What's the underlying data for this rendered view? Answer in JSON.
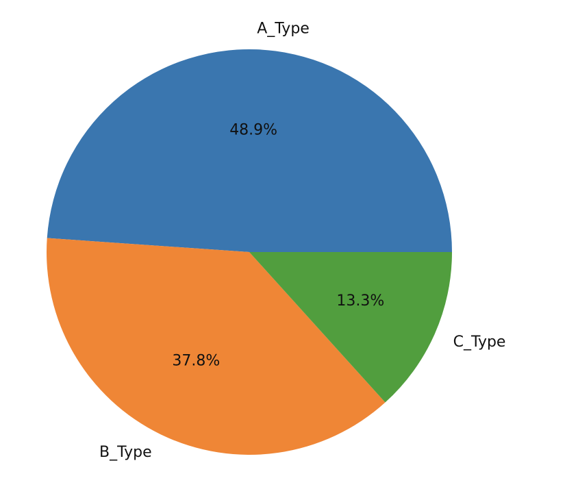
{
  "chart_data": {
    "type": "pie",
    "categories": [
      "A_Type",
      "B_Type",
      "C_Type"
    ],
    "values": [
      48.9,
      37.8,
      13.3
    ],
    "value_labels": [
      "48.9%",
      "37.8%",
      "13.3%"
    ],
    "colors": [
      "#3a76af",
      "#ef8636",
      "#519e3e"
    ]
  }
}
